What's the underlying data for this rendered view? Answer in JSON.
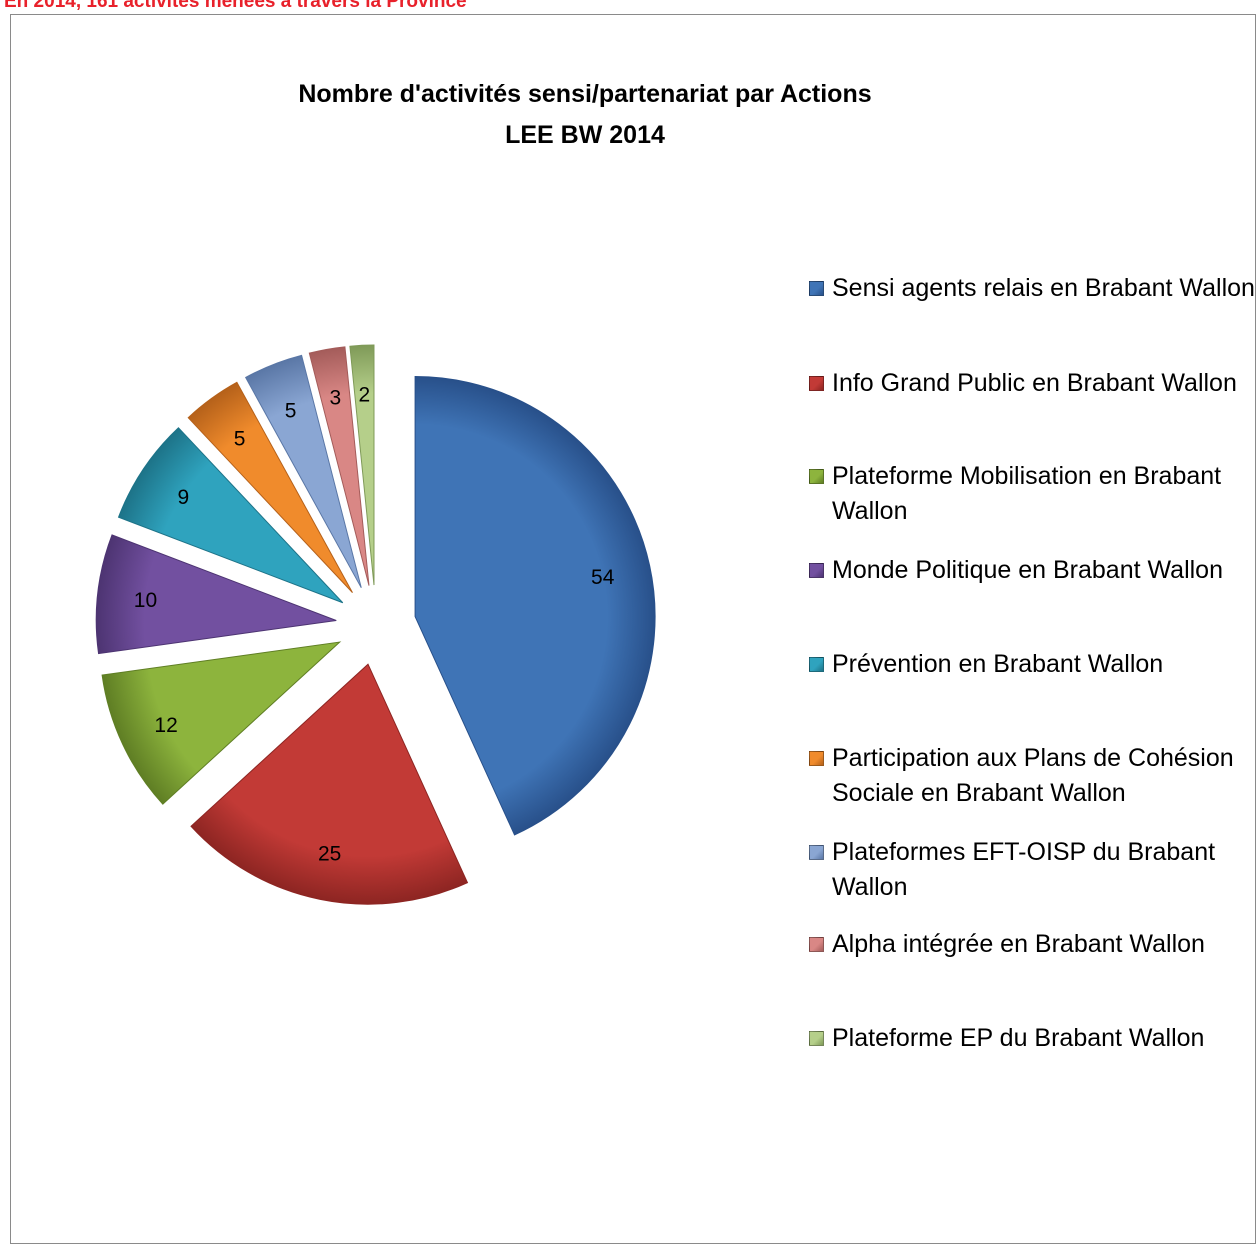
{
  "caption": "En 2014, 161 activités menées à travers la Province",
  "chart_data": {
    "type": "pie",
    "title_line1": "Nombre d'activités sensi/partenariat par Actions",
    "title_line2": "LEE BW 2014",
    "legend_position": "right",
    "slices": [
      {
        "label": "Sensi agents relais en Brabant Wallon",
        "value": 54,
        "color": "#3f74b6",
        "dark": "#28508a"
      },
      {
        "label": "Info Grand Public en Brabant Wallon",
        "value": 25,
        "color": "#c23a36",
        "dark": "#8d2522"
      },
      {
        "label": "Plateforme Mobilisation en Brabant Wallon",
        "value": 12,
        "color": "#8db43d",
        "dark": "#5f7e24"
      },
      {
        "label": "Monde Politique en Brabant Wallon",
        "value": 10,
        "color": "#7250a0",
        "dark": "#4d3472"
      },
      {
        "label": "Prévention en Brabant Wallon",
        "value": 9,
        "color": "#2fa3be",
        "dark": "#1d7388"
      },
      {
        "label": "Participation aux Plans de Cohésion Sociale en Brabant Wallon",
        "value": 5,
        "color": "#f08b2c",
        "dark": "#b5611a"
      },
      {
        "label": "Plateformes EFT-OISP du Brabant Wallon",
        "value": 5,
        "color": "#8aa6d3",
        "dark": "#5a77a6"
      },
      {
        "label": "Alpha intégrée en Brabant Wallon",
        "value": 3,
        "color": "#d98785",
        "dark": "#a45c5a"
      },
      {
        "label": "Plateforme EP du Brabant Wallon",
        "value": 2,
        "color": "#b5cf8a",
        "dark": "#7f9a58"
      }
    ]
  }
}
